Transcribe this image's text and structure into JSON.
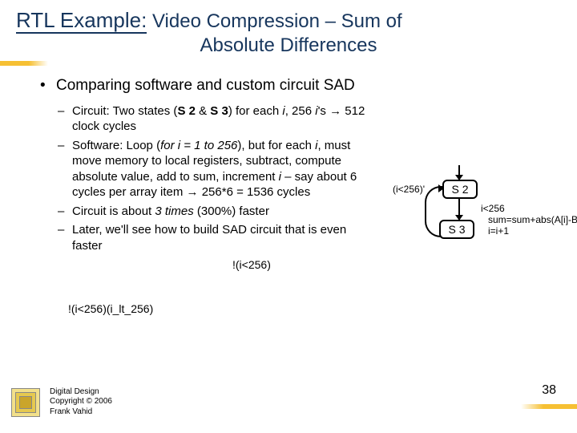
{
  "title": {
    "prefix": "RTL Example:",
    "rest_line1": " Video Compression – Sum of",
    "line2": "Absolute Differences"
  },
  "bullets": {
    "l1": "Comparing software and custom circuit SAD",
    "l2a_pre": "Circuit: Two states (",
    "l2a_b1": "S 2",
    "l2a_mid": " & ",
    "l2a_b2": "S 3",
    "l2a_post1": ") for each ",
    "l2a_i": "i",
    "l2a_post2": ", 256 ",
    "l2a_is": "i",
    "l2a_post3": "'s → 512 clock cycles",
    "l2b_pre": "Software: Loop (",
    "l2b_it": "for i = 1 to 256",
    "l2b_mid": "), but for each ",
    "l2b_i": "i",
    "l2b_post": ", must move memory to local registers, subtract, compute absolute value, add to sum, increment ",
    "l2b_i2": "i",
    "l2b_post2": " – say about 6 cycles per array item → 256*6 = 1536 cycles",
    "l2c_pre": "Circuit is about ",
    "l2c_it": "3 times",
    "l2c_post": " (300%) faster",
    "l2d": "Later, we'll see how to build SAD circuit that is even faster"
  },
  "overlays": {
    "o1": "!(i<256)",
    "o2_a": "!(i<256)",
    "o2_b": "(i_lt_256)"
  },
  "diagram": {
    "s2": "S 2",
    "s3": "S 3",
    "cond_in": "(i<256)'",
    "i_lt": "i<256",
    "sum": "sum=sum+abs(A[i]-B[i])",
    "inc": "i=i+1"
  },
  "footer": {
    "l1": "Digital Design",
    "l2": "Copyright © 2006",
    "l3": "Frank Vahid",
    "page": "38"
  }
}
